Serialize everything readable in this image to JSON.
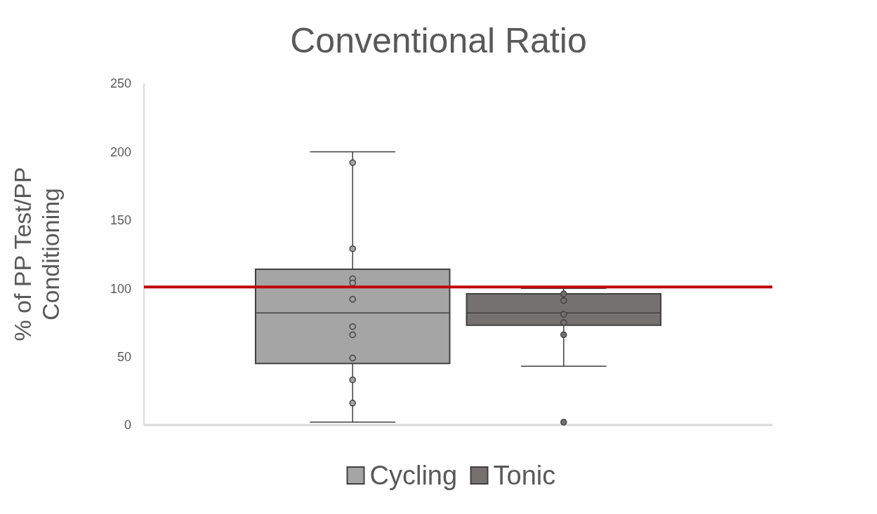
{
  "chart_data": {
    "type": "box",
    "title": "Conventional Ratio",
    "ylabel": "% of PP Test/PP Conditioning",
    "categories": [
      null
    ],
    "ylim": [
      0,
      250
    ],
    "yticks": [
      0,
      50,
      100,
      150,
      200,
      250
    ],
    "grid": false,
    "legend": "bottom",
    "marker": "circle",
    "series": [
      {
        "name": "Cycling",
        "color": "#a5a5a5",
        "boxes": [
          {
            "low": 2,
            "q1": 45,
            "median": 82,
            "q3": 114,
            "high": 200
          }
        ]
      },
      {
        "name": "Tonic",
        "color": "#767171",
        "boxes": [
          {
            "low": 43,
            "q1": 73,
            "median": 82,
            "q3": 96,
            "high": 100,
            "outliers": [
              2
            ]
          }
        ]
      },
      {
        "type": "scatter",
        "color": "#a5a5a5",
        "x": [
          null,
          null,
          null,
          null,
          null,
          null,
          null,
          null,
          null,
          null
        ],
        "values": [
          192,
          129,
          107,
          104,
          92,
          72,
          66,
          49,
          33,
          16
        ]
      },
      {
        "type": "scatter",
        "color": "#767171",
        "x": [
          null,
          null,
          null,
          null,
          null
        ],
        "values": [
          96,
          91,
          81,
          75,
          66
        ]
      }
    ],
    "ref_lines": [
      {
        "axis": "y",
        "value": 101,
        "color": "#c00000"
      }
    ]
  }
}
